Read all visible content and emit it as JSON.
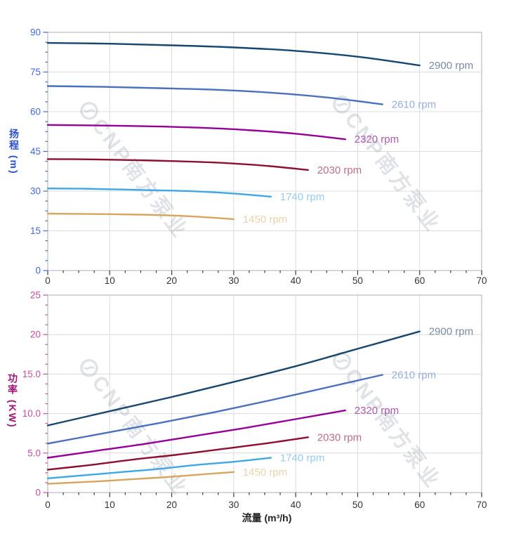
{
  "page": {
    "background": "#ffffff"
  },
  "watermark": {
    "text": "CNP南方泵业",
    "logo": "cnp-circle-logo",
    "color": "#8c96a8",
    "opacity": 0.28
  },
  "style": {
    "grid_color": "#dcdcdc",
    "border_color": "#b9bcc4",
    "x_axis": {
      "tick_color": "#3a3a3a",
      "label_color": "#333333",
      "title_color": "#222222"
    },
    "head_axis": {
      "tick_color": "#4169e1",
      "label_color": "#4169e1",
      "title_color": "#2b4fd0"
    },
    "power_axis": {
      "tick_color": "#c94ba4",
      "label_color": "#c94ba4",
      "title_color": "#a21578"
    }
  },
  "chart_data": [
    {
      "type": "line",
      "id": "head-curves",
      "title": "",
      "xlabel": "",
      "ylabel": "扬程 (m)",
      "xlim": [
        0,
        70
      ],
      "ylim": [
        0,
        90
      ],
      "grid": true,
      "legend_position": "end-of-line-labels",
      "x_major_ticks": [
        0,
        10,
        20,
        30,
        40,
        50,
        60,
        70
      ],
      "x_tick_labels": [
        "0",
        "10",
        "20",
        "30",
        "40",
        "50",
        "60",
        "70"
      ],
      "x_minor_step": 2.5,
      "y_major_ticks": [
        0,
        15,
        30,
        45,
        60,
        75,
        90
      ],
      "y_tick_labels": [
        "0",
        "15",
        "30",
        "45",
        "60",
        "75",
        "90"
      ],
      "y_minor_step": 3.75,
      "series": [
        {
          "name": "2900 rpm",
          "color": "#17466f",
          "label_color": "#7a8ba6",
          "x": [
            0,
            10,
            20,
            30,
            40,
            50,
            60
          ],
          "y": [
            86,
            85.7,
            85.1,
            84.3,
            83,
            80.8,
            77.5
          ]
        },
        {
          "name": "2610 rpm",
          "color": "#4a70be",
          "label_color": "#97aedc",
          "x": [
            0,
            9,
            18,
            27,
            36,
            45,
            54
          ],
          "y": [
            69.7,
            69.4,
            68.9,
            68.3,
            67.2,
            65.4,
            62.8
          ]
        },
        {
          "name": "2320 rpm",
          "color": "#970197",
          "label_color": "#ad59b0",
          "x": [
            0,
            8,
            16,
            24,
            32,
            40,
            48
          ],
          "y": [
            55,
            54.8,
            54.5,
            54,
            53.1,
            51.7,
            49.6
          ]
        },
        {
          "name": "2030 rpm",
          "color": "#8f0f32",
          "label_color": "#bd6e84",
          "x": [
            0,
            7,
            14,
            21,
            28,
            35,
            42
          ],
          "y": [
            42.1,
            42,
            41.7,
            41.3,
            40.7,
            39.6,
            38
          ]
        },
        {
          "name": "1740 rpm",
          "color": "#3ea7e6",
          "label_color": "#93cdf1",
          "x": [
            0,
            6,
            12,
            18,
            24,
            30,
            36
          ],
          "y": [
            31,
            30.9,
            30.6,
            30.3,
            29.9,
            29.1,
            27.9
          ]
        },
        {
          "name": "1450 rpm",
          "color": "#d7a55e",
          "label_color": "#ead2ac",
          "x": [
            0,
            5,
            10,
            15,
            20,
            25,
            30
          ],
          "y": [
            21.5,
            21.4,
            21.3,
            21.1,
            20.8,
            20.2,
            19.4
          ]
        }
      ]
    },
    {
      "type": "line",
      "id": "power-curves",
      "title": "",
      "xlabel": "流量 (m³/h)",
      "ylabel": "功率 (KW)",
      "xlim": [
        0,
        70
      ],
      "ylim": [
        0,
        25
      ],
      "grid": true,
      "legend_position": "end-of-line-labels",
      "x_major_ticks": [
        0,
        10,
        20,
        30,
        40,
        50,
        60,
        70
      ],
      "x_tick_labels": [
        "0",
        "10",
        "20",
        "30",
        "40",
        "50",
        "60",
        "70"
      ],
      "x_minor_step": 2.5,
      "y_major_ticks": [
        0,
        5,
        10,
        15,
        20,
        25
      ],
      "y_tick_labels": [
        "0",
        "5.0",
        "10.0",
        "15.0",
        "20",
        "25"
      ],
      "y_minor_step": 1.25,
      "series": [
        {
          "name": "2900 rpm",
          "color": "#17466f",
          "label_color": "#7a8ba6",
          "x": [
            0,
            10,
            20,
            30,
            40,
            50,
            60
          ],
          "y": [
            8.5,
            10.3,
            12.1,
            14,
            16,
            18.2,
            20.4
          ]
        },
        {
          "name": "2610 rpm",
          "color": "#4a70be",
          "label_color": "#97aedc",
          "x": [
            0,
            9,
            18,
            27,
            36,
            45,
            54
          ],
          "y": [
            6.2,
            7.5,
            8.8,
            10.2,
            11.7,
            13.3,
            14.9
          ]
        },
        {
          "name": "2320 rpm",
          "color": "#970197",
          "label_color": "#ad59b0",
          "x": [
            0,
            8,
            16,
            24,
            32,
            40,
            48
          ],
          "y": [
            4.4,
            5.3,
            6.2,
            7.2,
            8.2,
            9.3,
            10.4
          ]
        },
        {
          "name": "2030 rpm",
          "color": "#8f0f32",
          "label_color": "#bd6e84",
          "x": [
            0,
            7,
            14,
            21,
            28,
            35,
            42
          ],
          "y": [
            2.9,
            3.5,
            4.2,
            4.8,
            5.5,
            6.2,
            7
          ]
        },
        {
          "name": "1740 rpm",
          "color": "#3ea7e6",
          "label_color": "#93cdf1",
          "x": [
            0,
            6,
            12,
            18,
            24,
            30,
            36
          ],
          "y": [
            1.8,
            2.2,
            2.6,
            3,
            3.5,
            3.9,
            4.4
          ]
        },
        {
          "name": "1450 rpm",
          "color": "#d7a55e",
          "label_color": "#ead2ac",
          "x": [
            0,
            5,
            10,
            15,
            20,
            25,
            30
          ],
          "y": [
            1.1,
            1.3,
            1.5,
            1.75,
            2,
            2.3,
            2.6
          ]
        }
      ]
    }
  ]
}
